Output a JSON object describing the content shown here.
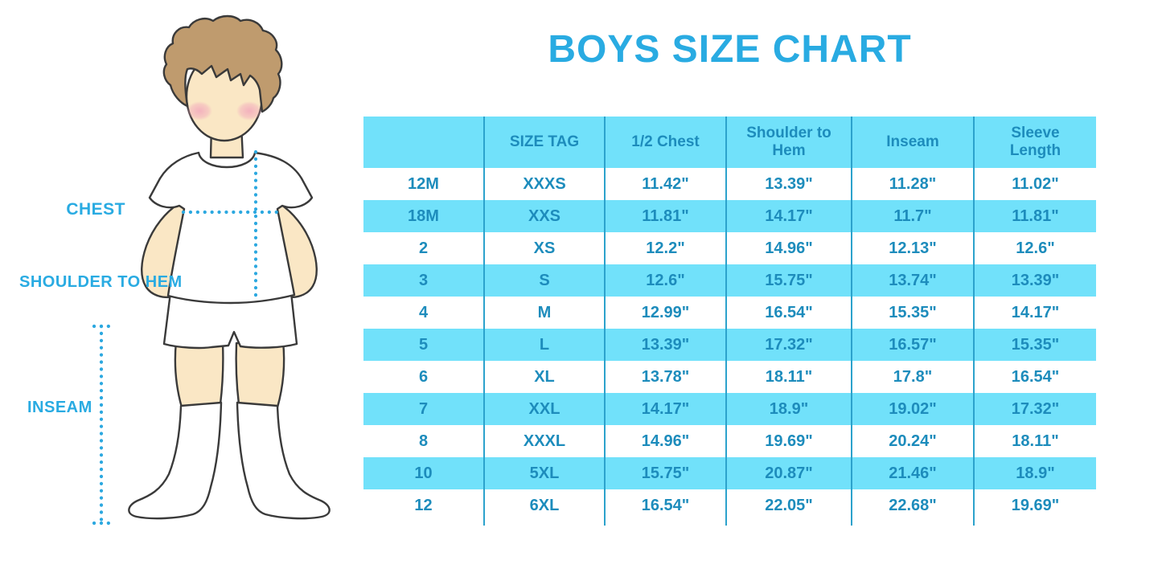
{
  "page_title": "BOYS SIZE CHART",
  "figure": {
    "description": "illustration of a boy in white t-shirt, shorts and knee socks with measurement guides",
    "labels": {
      "chest": "CHEST",
      "shoulder_to_hem": "SHOULDER TO HEM",
      "inseam": "INSEAM"
    }
  },
  "colors": {
    "title_blue": "#29ABE2",
    "label_blue": "#29ABE2",
    "dotted_line": "#2CA8E0",
    "table_text": "#1D8CBC",
    "row_bg": "#71E1FA",
    "grid_line": "#2CA2CC",
    "hair": "#BF9B6E",
    "skin": "#FAE7C5",
    "cheek": "#F2A8BC",
    "outline": "#3A3A3A"
  },
  "chart_data": {
    "type": "table",
    "title": "BOYS SIZE CHART",
    "columns": [
      "",
      "SIZE TAG",
      "1/2 Chest",
      "Shoulder to Hem",
      "Inseam",
      "Sleeve Length"
    ],
    "rows": [
      [
        "12M",
        "XXXS",
        "11.42\"",
        "13.39\"",
        "11.28\"",
        "11.02\""
      ],
      [
        "18M",
        "XXS",
        "11.81\"",
        "14.17\"",
        "11.7\"",
        "11.81\""
      ],
      [
        "2",
        "XS",
        "12.2\"",
        "14.96\"",
        "12.13\"",
        "12.6\""
      ],
      [
        "3",
        "S",
        "12.6\"",
        "15.75\"",
        "13.74\"",
        "13.39\""
      ],
      [
        "4",
        "M",
        "12.99\"",
        "16.54\"",
        "15.35\"",
        "14.17\""
      ],
      [
        "5",
        "L",
        "13.39\"",
        "17.32\"",
        "16.57\"",
        "15.35\""
      ],
      [
        "6",
        "XL",
        "13.78\"",
        "18.11\"",
        "17.8\"",
        "16.54\""
      ],
      [
        "7",
        "XXL",
        "14.17\"",
        "18.9\"",
        "19.02\"",
        "17.32\""
      ],
      [
        "8",
        "XXXL",
        "14.96\"",
        "19.69\"",
        "20.24\"",
        "18.11\""
      ],
      [
        "10",
        "5XL",
        "15.75\"",
        "20.87\"",
        "21.46\"",
        "18.9\""
      ],
      [
        "12",
        "6XL",
        "16.54\"",
        "22.05\"",
        "22.68\"",
        "19.69\""
      ]
    ],
    "layout": {
      "striped": true,
      "stripe_pattern": "alternate rows highlighted starting with second data row",
      "grid": "vertical lines only"
    }
  }
}
